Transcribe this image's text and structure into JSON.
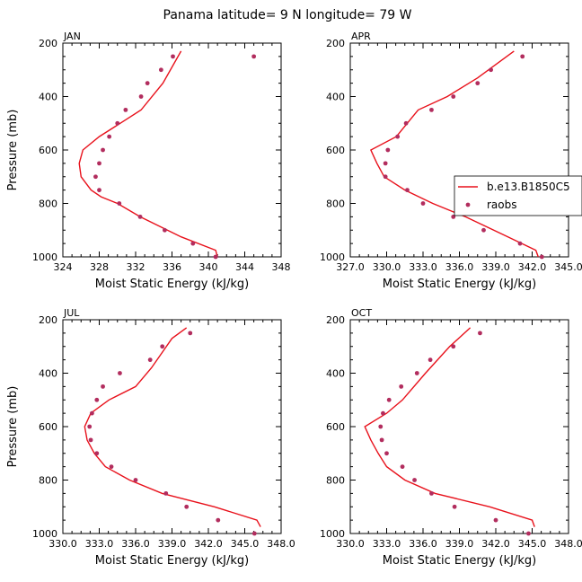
{
  "title": "Panama  latitude= 9 N longitude= 79 W",
  "colors": {
    "model": "#e8111b",
    "obs": "#b22d5e",
    "axis": "#000000"
  },
  "legend": {
    "panel": 1,
    "entries": [
      {
        "label": "b.e13.B1850C5",
        "kind": "line"
      },
      {
        "label": "raobs",
        "kind": "marker"
      }
    ]
  },
  "chart_data": [
    {
      "type": "line",
      "panel_label": "JAN",
      "xlabel": "Moist Static Energy (kJ/kg)",
      "ylabel": "Pressure (mb)",
      "xlim": [
        324,
        348
      ],
      "ylim": [
        1000,
        200
      ],
      "xticks": [
        324,
        328,
        332,
        336,
        340,
        344,
        348
      ],
      "xtick_labels": [
        "324",
        "328",
        "332",
        "336",
        "340",
        "344",
        "348"
      ],
      "yticks": [
        200,
        400,
        600,
        800,
        1000
      ],
      "series": [
        {
          "name": "b.e13.B1850C5",
          "kind": "line",
          "x": [
            341.0,
            340.8,
            337.0,
            332.5,
            330.0,
            328.2,
            327.1,
            326.0,
            325.8,
            326.2,
            328.0,
            330.3,
            332.6,
            335.0,
            337.0
          ],
          "y": [
            1000,
            975,
            925,
            850,
            800,
            775,
            750,
            700,
            650,
            600,
            550,
            500,
            450,
            350,
            230
          ]
        },
        {
          "name": "raobs",
          "kind": "scatter",
          "x": [
            340.8,
            338.3,
            335.2,
            332.5,
            330.2,
            328.0,
            327.6,
            328.0,
            328.4,
            329.1,
            330.0,
            330.9,
            332.6,
            333.3,
            334.8,
            336.1,
            345.0
          ],
          "y": [
            1000,
            950,
            900,
            850,
            800,
            750,
            700,
            650,
            600,
            550,
            500,
            450,
            400,
            350,
            300,
            250,
            250
          ]
        }
      ]
    },
    {
      "type": "line",
      "panel_label": "APR",
      "xlabel": "Moist Static Energy (kJ/kg)",
      "ylabel": "",
      "xlim": [
        327,
        345
      ],
      "ylim": [
        1000,
        200
      ],
      "xticks": [
        327,
        330,
        333,
        336,
        339,
        342,
        345
      ],
      "xtick_labels": [
        "327.0",
        "330.0",
        "333.0",
        "336.0",
        "339.0",
        "342.0",
        "345.0"
      ],
      "yticks": [
        200,
        400,
        600,
        800,
        1000
      ],
      "series": [
        {
          "name": "b.e13.B1850C5",
          "kind": "line",
          "x": [
            342.5,
            342.3,
            340.0,
            336.5,
            333.8,
            331.5,
            329.8,
            329.2,
            328.7,
            330.8,
            332.6,
            335.0,
            337.5,
            340.5
          ],
          "y": [
            1000,
            975,
            925,
            850,
            800,
            750,
            700,
            650,
            600,
            550,
            450,
            400,
            330,
            230
          ]
        },
        {
          "name": "raobs",
          "kind": "scatter",
          "x": [
            342.8,
            341.0,
            338.0,
            335.5,
            333.0,
            331.7,
            329.9,
            329.9,
            330.1,
            330.9,
            331.6,
            333.7,
            335.5,
            337.5,
            338.6,
            341.2
          ],
          "y": [
            1000,
            950,
            900,
            850,
            800,
            750,
            700,
            650,
            600,
            550,
            500,
            450,
            400,
            350,
            300,
            250
          ]
        }
      ]
    },
    {
      "type": "line",
      "panel_label": "JUL",
      "xlabel": "Moist Static Energy (kJ/kg)",
      "ylabel": "Pressure (mb)",
      "xlim": [
        330,
        348
      ],
      "ylim": [
        1000,
        200
      ],
      "xticks": [
        330,
        333,
        336,
        339,
        342,
        345,
        348
      ],
      "xtick_labels": [
        "330.0",
        "333.0",
        "336.0",
        "339.0",
        "342.0",
        "345.0",
        "348.0"
      ],
      "yticks": [
        200,
        400,
        600,
        800,
        1000
      ],
      "series": [
        {
          "name": "b.e13.B1850C5",
          "kind": "line",
          "x": [
            346.3,
            346.0,
            342.5,
            338.2,
            335.5,
            333.5,
            332.6,
            332.0,
            331.8,
            332.3,
            333.8,
            336.0,
            337.3,
            339.0,
            340.2
          ],
          "y": [
            975,
            950,
            900,
            850,
            800,
            750,
            700,
            650,
            600,
            550,
            500,
            450,
            380,
            270,
            230
          ]
        },
        {
          "name": "raobs",
          "kind": "scatter",
          "x": [
            345.8,
            342.8,
            340.2,
            338.5,
            336.0,
            334.0,
            332.8,
            332.3,
            332.2,
            332.4,
            332.8,
            333.3,
            334.7,
            337.2,
            338.2,
            340.5
          ],
          "y": [
            1000,
            950,
            900,
            850,
            800,
            750,
            700,
            650,
            600,
            550,
            500,
            450,
            400,
            350,
            300,
            250
          ]
        }
      ]
    },
    {
      "type": "line",
      "panel_label": "OCT",
      "xlabel": "Moist Static Energy (kJ/kg)",
      "ylabel": "",
      "xlim": [
        330,
        348
      ],
      "ylim": [
        1000,
        200
      ],
      "xticks": [
        330,
        333,
        336,
        339,
        342,
        345,
        348
      ],
      "xtick_labels": [
        "330.0",
        "333.0",
        "336.0",
        "339.0",
        "342.0",
        "345.0",
        "348.0"
      ],
      "yticks": [
        200,
        400,
        600,
        800,
        1000
      ],
      "series": [
        {
          "name": "b.e13.B1850C5",
          "kind": "line",
          "x": [
            345.2,
            345.0,
            341.5,
            337.0,
            334.5,
            333.0,
            332.3,
            331.7,
            331.2,
            333.0,
            334.3,
            336.2,
            338.2,
            339.9
          ],
          "y": [
            975,
            950,
            900,
            850,
            800,
            750,
            700,
            650,
            600,
            550,
            500,
            400,
            300,
            230
          ]
        },
        {
          "name": "raobs",
          "kind": "scatter",
          "x": [
            344.7,
            342.0,
            338.6,
            336.7,
            335.3,
            334.3,
            333.0,
            332.6,
            332.5,
            332.7,
            333.2,
            334.2,
            335.5,
            336.6,
            338.5,
            340.7
          ],
          "y": [
            1000,
            950,
            900,
            850,
            800,
            750,
            700,
            650,
            600,
            550,
            500,
            450,
            400,
            350,
            300,
            250
          ]
        }
      ]
    }
  ]
}
